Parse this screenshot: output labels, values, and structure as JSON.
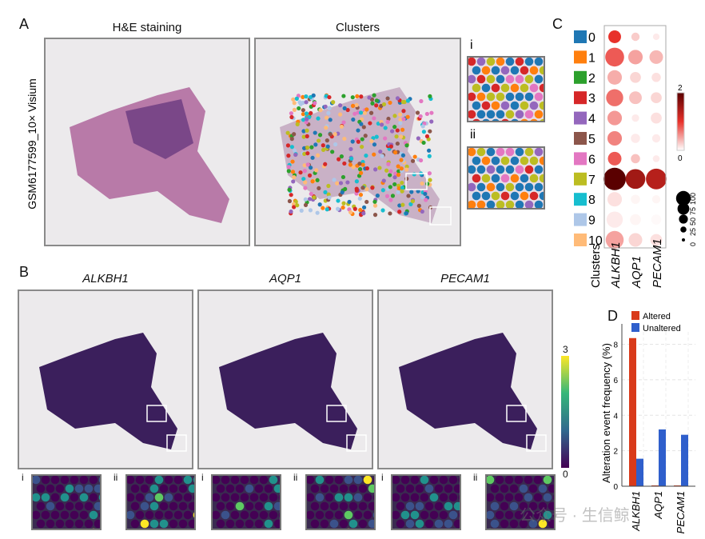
{
  "panel_a": {
    "label": "A",
    "he_title": "H&E staining",
    "clusters_title": "Clusters",
    "y_label": "GSM6177599_10× Visium",
    "insets": [
      "i",
      "ii"
    ],
    "cluster_colors": [
      "#1f77b4",
      "#ff7f0e",
      "#2ca02c",
      "#d62728",
      "#9467bd",
      "#8c564b",
      "#e377c2",
      "#bcbd22",
      "#17becf",
      "#aec7e8",
      "#ffbb78"
    ]
  },
  "panel_b": {
    "label": "B",
    "genes": [
      "ALKBH1",
      "AQP1",
      "PECAM1"
    ],
    "insets": [
      "i",
      "ii"
    ],
    "colorbar": {
      "max": "3",
      "min": "0"
    }
  },
  "watermark": "公众号 · 生信鲸",
  "chart_data": [
    {
      "panel": "C",
      "type": "dot",
      "xlabel": "Clusters",
      "genes": [
        "ALKBH1",
        "AQP1",
        "PECAM1"
      ],
      "clusters": [
        "0",
        "1",
        "2",
        "3",
        "4",
        "5",
        "6",
        "7",
        "8",
        "9",
        "10"
      ],
      "cluster_colors": [
        "#1f77b4",
        "#ff7f0e",
        "#2ca02c",
        "#d62728",
        "#9467bd",
        "#8c564b",
        "#e377c2",
        "#bcbd22",
        "#17becf",
        "#aec7e8",
        "#ffbb78"
      ],
      "expression": [
        [
          1.0,
          0.25,
          0.1
        ],
        [
          0.8,
          0.45,
          0.35
        ],
        [
          0.4,
          0.2,
          0.15
        ],
        [
          0.7,
          0.3,
          0.2
        ],
        [
          0.5,
          0.1,
          0.15
        ],
        [
          0.6,
          0.1,
          0.1
        ],
        [
          0.8,
          0.3,
          0.1
        ],
        [
          2.0,
          1.5,
          1.35
        ],
        [
          0.15,
          0.05,
          0.05
        ],
        [
          0.1,
          0.05,
          0.03
        ],
        [
          0.45,
          0.2,
          0.15
        ]
      ],
      "percent": [
        [
          45,
          20,
          10
        ],
        [
          80,
          55,
          50
        ],
        [
          55,
          35,
          25
        ],
        [
          70,
          45,
          35
        ],
        [
          55,
          15,
          35
        ],
        [
          55,
          25,
          20
        ],
        [
          50,
          25,
          12
        ],
        [
          100,
          85,
          90
        ],
        [
          55,
          25,
          20
        ],
        [
          65,
          35,
          30
        ],
        [
          75,
          50,
          40
        ]
      ],
      "color_scale": {
        "min": "0",
        "max": "2",
        "low": "#ffffff",
        "mid": "#e8312a",
        "high": "#5a0000"
      },
      "size_legend": [
        "0",
        "25",
        "50",
        "75",
        "100"
      ]
    },
    {
      "panel": "D",
      "type": "bar",
      "ylabel": "Alteration event frequency (%)",
      "categories": [
        "ALKBH1",
        "AQP1",
        "PECAM1"
      ],
      "series": [
        {
          "name": "Altered",
          "color": "#d93a1a",
          "values": [
            8.35,
            0,
            0
          ]
        },
        {
          "name": "Unaltered",
          "color": "#2f5fcc",
          "values": [
            1.55,
            3.2,
            2.9
          ]
        }
      ],
      "ylim": [
        0,
        8.7
      ],
      "yticks": [
        "0",
        "2",
        "4",
        "6",
        "8"
      ],
      "grid": true,
      "legend": "top"
    }
  ]
}
